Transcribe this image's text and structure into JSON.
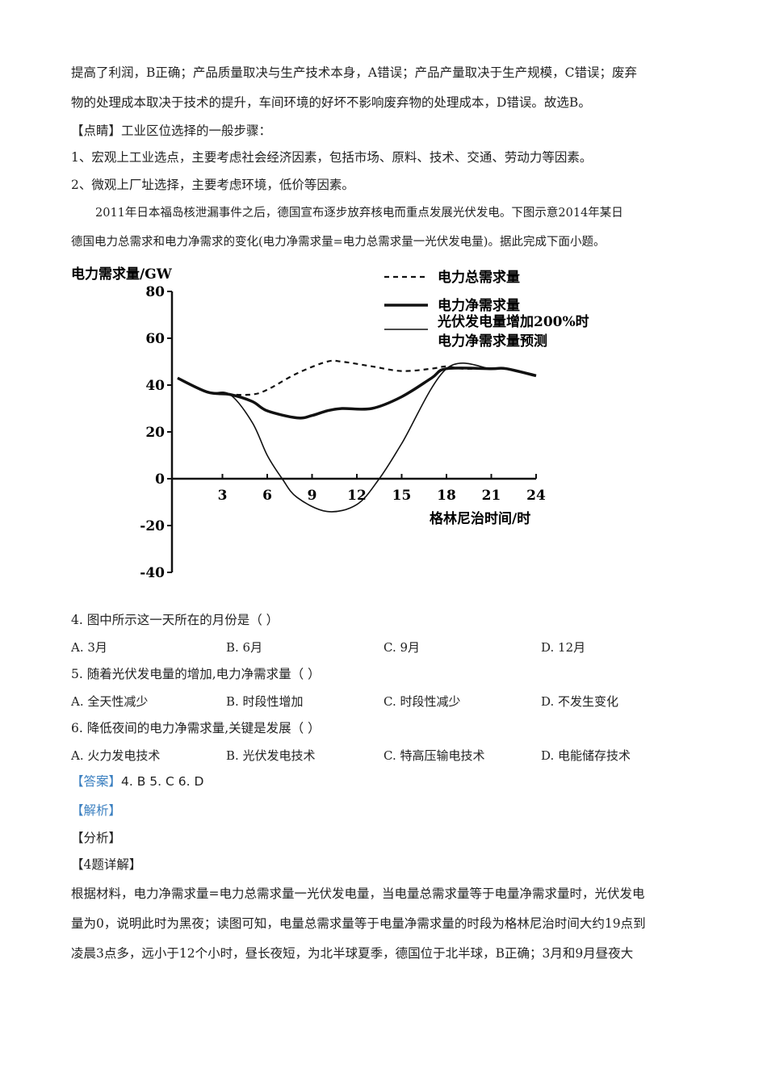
{
  "paragraphs": [
    "提高了利润，B正确；产品质量取决与生产技术本身，A错误；产品产量取决于生产规模，C错误；废弃",
    "物的处理成本取决于技术的提升，车间环境的好坏不影响废弃物的处理成本，D错误。故选B。",
    "【点睛】工业区位选择的一般步骤：",
    "1、宏观上工业选点，主要考虑社会经济因素，包括市场、原料、技术、交通、劳动力等因素。",
    "2、微观上厂址选择，主要考虑环境，低价等因素。",
    "2011年日本福岛核泄漏事件之后，德国宣布逐步放弃核电而重点发展光伏发电。下图示意2014年某日",
    "德国电力总需求和电力净需求的变化(电力净需求量=电力总需求量一光伏发电量)。据此完成下面小题。"
  ],
  "chart_data": {
    "type": "line",
    "ylabel": "电力需求量/GW",
    "xlabel": "格林尼治时间/时",
    "ylim": [
      -40,
      80
    ],
    "xlim": [
      0,
      24
    ],
    "yticks": [
      "80",
      "60",
      "40",
      "20",
      "0",
      "-20",
      "-40"
    ],
    "xticks": [
      "3",
      "6",
      "9",
      "12",
      "15",
      "18",
      "21",
      "24"
    ],
    "legend_position": "top-right",
    "series": [
      {
        "name": "电力总需求量",
        "style": "dashed",
        "points": [
          [
            0,
            43
          ],
          [
            2,
            37
          ],
          [
            3.5,
            36
          ],
          [
            5,
            36
          ],
          [
            6,
            38
          ],
          [
            8,
            45
          ],
          [
            10,
            50
          ],
          [
            11,
            50
          ],
          [
            13,
            48
          ],
          [
            15,
            46
          ],
          [
            17,
            47
          ],
          [
            18,
            48
          ],
          [
            19,
            47
          ],
          [
            21,
            47
          ],
          [
            22,
            47
          ],
          [
            24,
            44
          ]
        ]
      },
      {
        "name": "电力净需求量",
        "style": "thick",
        "points": [
          [
            0,
            43
          ],
          [
            2,
            37
          ],
          [
            3.5,
            36
          ],
          [
            5,
            33
          ],
          [
            6,
            29
          ],
          [
            8,
            26
          ],
          [
            9,
            27
          ],
          [
            10,
            29
          ],
          [
            11,
            30
          ],
          [
            13,
            30
          ],
          [
            15,
            35
          ],
          [
            17,
            43
          ],
          [
            18,
            47
          ],
          [
            21,
            47
          ],
          [
            22,
            47
          ],
          [
            24,
            44
          ]
        ]
      },
      {
        "name": "光伏发电量增加200%时电力净需求量预测",
        "name_lines": [
          "光伏发电量增加200%时",
          "电力净需求量预测"
        ],
        "style": "thin",
        "points": [
          [
            0,
            43
          ],
          [
            2,
            37
          ],
          [
            3.5,
            36
          ],
          [
            5,
            24
          ],
          [
            6,
            10
          ],
          [
            7,
            0
          ],
          [
            8,
            -8
          ],
          [
            10,
            -14
          ],
          [
            12,
            -11
          ],
          [
            13.5,
            0
          ],
          [
            15,
            15
          ],
          [
            18,
            47
          ],
          [
            21,
            47
          ],
          [
            22,
            47
          ],
          [
            24,
            44
          ]
        ]
      }
    ]
  },
  "questions": [
    {
      "stem": "4. 图中所示这一天所在的月份是（    ）",
      "options": [
        "A. 3月",
        "B. 6月",
        "C. 9月",
        "D. 12月"
      ]
    },
    {
      "stem": "5. 随着光伏发电量的增加,电力净需求量（    ）",
      "options": [
        "A. 全天性减少",
        "B. 时段性增加",
        "C. 时段性减少",
        "D. 不发生变化"
      ]
    },
    {
      "stem": "6. 降低夜间的电力净需求量,关键是发展（    ）",
      "options": [
        "A. 火力发电技术",
        "B. 光伏发电技术",
        "C. 特高压输电技术",
        "D. 电能储存技术"
      ]
    }
  ],
  "answer": {
    "label": "【答案】",
    "text": "4. B   5. C   6. D"
  },
  "analysis_label": "【解析】",
  "fenxi_label": "【分析】",
  "detail_label": "【4题详解】",
  "detail": [
    "根据材料，电力净需求量=电力总需求量一光伏发电量，当电量总需求量等于电量净需求量时，光伏发电",
    "量为0，说明此时为黑夜；读图可知，电量总需求量等于电量净需求量的时段为格林尼治时间大约19点到",
    "凌晨3点多，远小于12个小时，昼长夜短，为北半球夏季，德国位于北半球，B正确；3月和9月昼夜大"
  ]
}
